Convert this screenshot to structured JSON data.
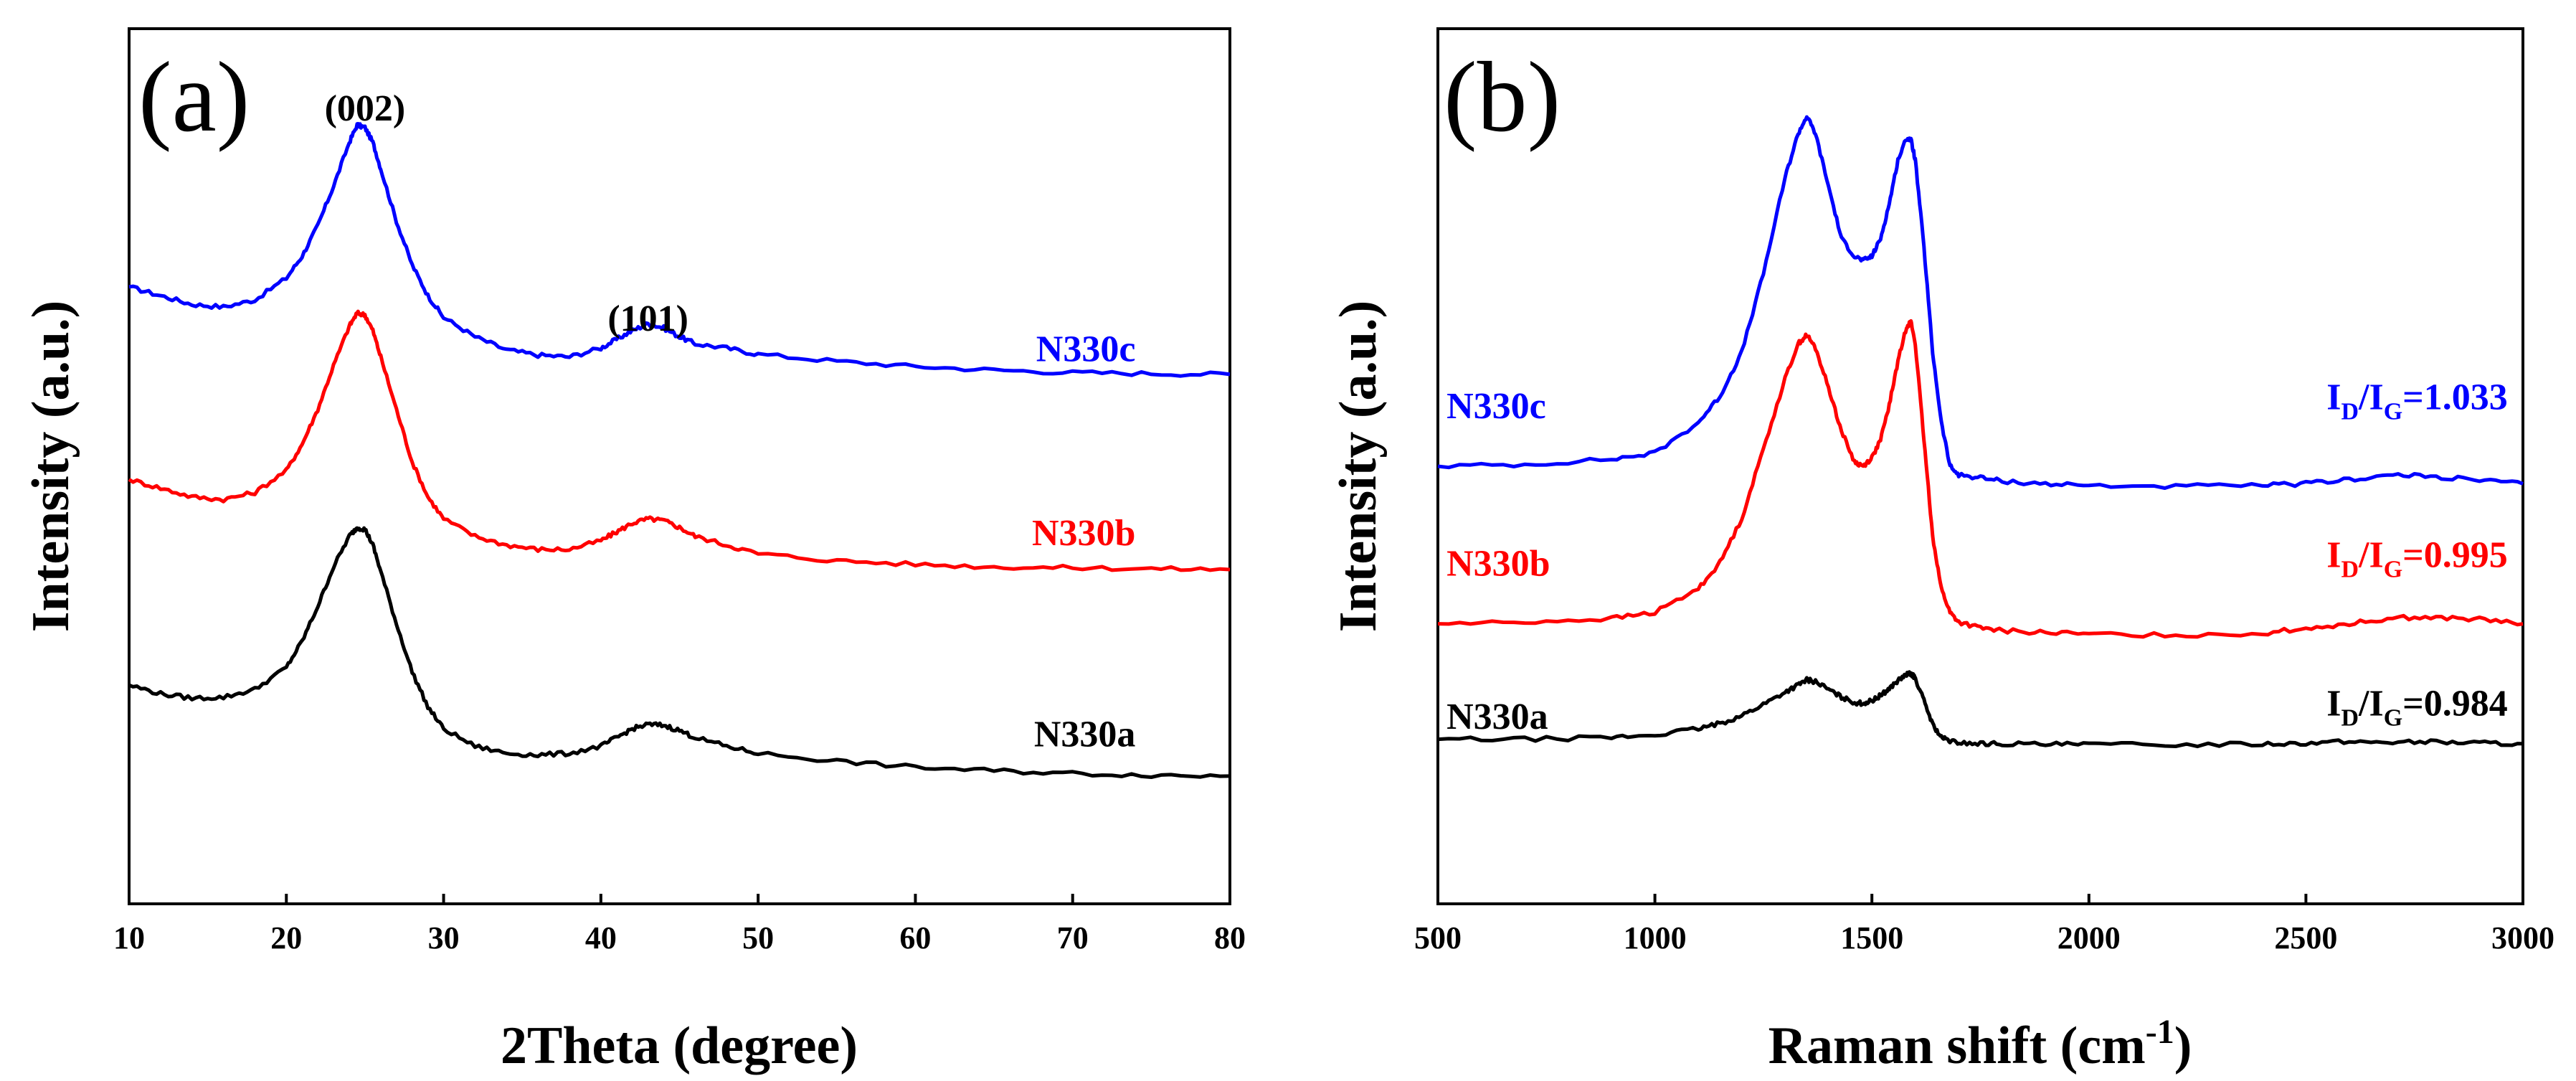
{
  "chart_data": [
    {
      "panel": "(a)",
      "type": "line",
      "xlabel": "2Theta (degree)",
      "ylabel": "Intensity (a.u.)",
      "xlim": [
        10,
        80
      ],
      "ylim": [
        0,
        1
      ],
      "xticks": [
        10,
        20,
        30,
        40,
        50,
        60,
        70,
        80
      ],
      "grid": false,
      "annotations": [
        {
          "text": "(002)",
          "x": 25,
          "y": 0.895
        },
        {
          "text": "(101)",
          "x": 43,
          "y": 0.655
        }
      ],
      "series": [
        {
          "name": "N330c",
          "color": "#0000ff",
          "label_pos": [
            74,
            0.62
          ],
          "x": [
            10,
            12,
            14,
            16,
            18,
            20,
            21,
            22,
            23,
            24,
            24.5,
            25,
            25.5,
            26,
            27,
            28,
            29,
            30,
            32,
            34,
            36,
            38,
            40,
            41,
            42,
            43,
            44,
            45,
            46,
            48,
            50,
            55,
            60,
            65,
            70,
            75,
            80
          ],
          "y": [
            0.705,
            0.695,
            0.685,
            0.682,
            0.69,
            0.715,
            0.74,
            0.775,
            0.82,
            0.87,
            0.89,
            0.887,
            0.87,
            0.84,
            0.78,
            0.73,
            0.695,
            0.67,
            0.648,
            0.633,
            0.627,
            0.625,
            0.635,
            0.645,
            0.655,
            0.663,
            0.658,
            0.648,
            0.64,
            0.635,
            0.628,
            0.62,
            0.614,
            0.61,
            0.607,
            0.606,
            0.605
          ]
        },
        {
          "name": "N330b",
          "color": "#ff0000",
          "label_pos": [
            74,
            0.41
          ],
          "x": [
            10,
            12,
            14,
            16,
            18,
            20,
            21,
            22,
            23,
            24,
            24.5,
            25,
            25.5,
            26,
            27,
            28,
            29,
            30,
            32,
            34,
            36,
            38,
            40,
            41,
            42,
            43,
            44,
            45,
            46,
            48,
            50,
            55,
            60,
            65,
            70,
            75,
            80
          ],
          "y": [
            0.485,
            0.475,
            0.465,
            0.462,
            0.47,
            0.495,
            0.525,
            0.565,
            0.615,
            0.66,
            0.675,
            0.673,
            0.655,
            0.625,
            0.565,
            0.505,
            0.465,
            0.44,
            0.42,
            0.41,
            0.405,
            0.405,
            0.415,
            0.425,
            0.435,
            0.44,
            0.438,
            0.43,
            0.42,
            0.41,
            0.4,
            0.392,
            0.388,
            0.385,
            0.384,
            0.383,
            0.382
          ]
        },
        {
          "name": "N330a",
          "color": "#000000",
          "label_pos": [
            74,
            0.18
          ],
          "x": [
            10,
            12,
            14,
            16,
            18,
            20,
            21,
            22,
            23,
            24,
            24.5,
            25,
            25.5,
            26,
            27,
            28,
            29,
            30,
            32,
            34,
            36,
            38,
            40,
            41,
            42,
            43,
            44,
            45,
            46,
            48,
            50,
            55,
            60,
            65,
            70,
            75,
            80
          ],
          "y": [
            0.25,
            0.24,
            0.235,
            0.236,
            0.245,
            0.27,
            0.3,
            0.34,
            0.385,
            0.42,
            0.43,
            0.428,
            0.41,
            0.38,
            0.32,
            0.265,
            0.225,
            0.2,
            0.18,
            0.172,
            0.17,
            0.172,
            0.18,
            0.19,
            0.2,
            0.205,
            0.204,
            0.198,
            0.19,
            0.18,
            0.172,
            0.163,
            0.156,
            0.152,
            0.149,
            0.147,
            0.146
          ]
        }
      ]
    },
    {
      "panel": "(b)",
      "type": "line",
      "xlabel": "Raman shift (cm",
      "xlabel_sup": "-1",
      "xlabel_close": ")",
      "ylabel": "Intensity (a.u.)",
      "xlim": [
        500,
        3000
      ],
      "ylim": [
        0,
        1
      ],
      "xticks": [
        500,
        1000,
        1500,
        2000,
        2500,
        3000
      ],
      "grid": false,
      "series": [
        {
          "name": "N330c",
          "color": "#0000ff",
          "ratio": "=1.033",
          "label_pos": [
            520,
            0.555
          ],
          "ratio_pos": [
            2965,
            0.565
          ],
          "x": [
            500,
            700,
            900,
            1000,
            1100,
            1150,
            1200,
            1250,
            1300,
            1330,
            1350,
            1370,
            1400,
            1430,
            1460,
            1480,
            1500,
            1520,
            1540,
            1560,
            1580,
            1590,
            1600,
            1620,
            1640,
            1660,
            1680,
            1700,
            1750,
            1800,
            1900,
            2000,
            2200,
            2400,
            2500,
            2600,
            2700,
            2800,
            2900,
            3000
          ],
          "y": [
            0.5,
            0.502,
            0.508,
            0.515,
            0.55,
            0.58,
            0.63,
            0.72,
            0.83,
            0.88,
            0.9,
            0.88,
            0.82,
            0.76,
            0.74,
            0.735,
            0.74,
            0.76,
            0.8,
            0.85,
            0.875,
            0.873,
            0.85,
            0.75,
            0.63,
            0.55,
            0.5,
            0.49,
            0.487,
            0.483,
            0.48,
            0.478,
            0.477,
            0.478,
            0.48,
            0.485,
            0.49,
            0.488,
            0.484,
            0.48
          ]
        },
        {
          "name": "N330b",
          "color": "#ff0000",
          "ratio": "=0.995",
          "label_pos": [
            520,
            0.375
          ],
          "ratio_pos": [
            2965,
            0.385
          ],
          "x": [
            500,
            700,
            900,
            1000,
            1100,
            1150,
            1200,
            1250,
            1300,
            1330,
            1350,
            1370,
            1400,
            1430,
            1460,
            1480,
            1500,
            1520,
            1540,
            1560,
            1580,
            1590,
            1600,
            1620,
            1640,
            1660,
            1680,
            1700,
            1750,
            1800,
            1900,
            2000,
            2200,
            2400,
            2500,
            2600,
            2700,
            2800,
            2900,
            3000
          ],
          "y": [
            0.32,
            0.322,
            0.326,
            0.333,
            0.36,
            0.39,
            0.44,
            0.52,
            0.6,
            0.64,
            0.65,
            0.635,
            0.59,
            0.54,
            0.505,
            0.5,
            0.51,
            0.53,
            0.57,
            0.62,
            0.66,
            0.665,
            0.64,
            0.53,
            0.42,
            0.36,
            0.333,
            0.322,
            0.315,
            0.312,
            0.31,
            0.308,
            0.307,
            0.309,
            0.315,
            0.32,
            0.327,
            0.327,
            0.325,
            0.32
          ]
        },
        {
          "name": "N330a",
          "color": "#000000",
          "ratio": "=0.984",
          "label_pos": [
            520,
            0.2
          ],
          "ratio_pos": [
            2965,
            0.215
          ],
          "x": [
            500,
            700,
            900,
            1000,
            1100,
            1150,
            1200,
            1250,
            1300,
            1330,
            1350,
            1370,
            1400,
            1430,
            1460,
            1480,
            1500,
            1520,
            1540,
            1560,
            1580,
            1590,
            1600,
            1620,
            1640,
            1660,
            1680,
            1700,
            1750,
            1800,
            1900,
            2000,
            2200,
            2400,
            2500,
            2600,
            2700,
            2800,
            2900,
            3000
          ],
          "y": [
            0.188,
            0.188,
            0.19,
            0.193,
            0.2,
            0.206,
            0.215,
            0.228,
            0.242,
            0.25,
            0.256,
            0.254,
            0.245,
            0.236,
            0.23,
            0.229,
            0.232,
            0.238,
            0.246,
            0.255,
            0.262,
            0.263,
            0.258,
            0.232,
            0.205,
            0.19,
            0.186,
            0.184,
            0.183,
            0.183,
            0.182,
            0.182,
            0.182,
            0.183,
            0.184,
            0.185,
            0.185,
            0.185,
            0.184,
            0.183
          ]
        }
      ]
    }
  ]
}
